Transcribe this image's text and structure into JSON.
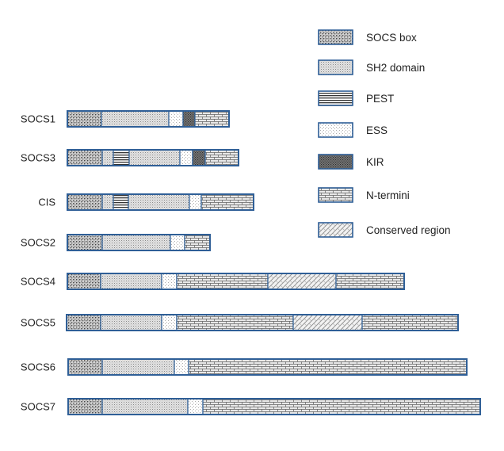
{
  "legend": [
    {
      "key": "socs",
      "label": "SOCS box",
      "pattern": "socs-box-pattern"
    },
    {
      "key": "sh2",
      "label": "SH2 domain",
      "pattern": "sh2-domain-pattern"
    },
    {
      "key": "pest",
      "label": "PEST",
      "pattern": "pest-pattern"
    },
    {
      "key": "ess",
      "label": "ESS",
      "pattern": "ess-pattern"
    },
    {
      "key": "kir",
      "label": "KIR",
      "pattern": "kir-pattern"
    },
    {
      "key": "nterm",
      "label": "N-termini",
      "pattern": "n-termini-pattern"
    },
    {
      "key": "cons",
      "label": "Conserved region",
      "pattern": "conserved-region-pattern"
    }
  ],
  "proteins": [
    {
      "name": "SOCS1",
      "domains": [
        "socs",
        "sh2",
        "ess",
        "kir",
        "nterm"
      ]
    },
    {
      "name": "SOCS3",
      "domains": [
        "socs",
        "sh2",
        "pest",
        "sh2",
        "ess",
        "kir",
        "nterm"
      ]
    },
    {
      "name": "CIS",
      "domains": [
        "socs",
        "sh2",
        "pest",
        "sh2",
        "ess",
        "nterm"
      ]
    },
    {
      "name": "SOCS2",
      "domains": [
        "socs",
        "sh2",
        "ess",
        "nterm"
      ]
    },
    {
      "name": "SOCS4",
      "domains": [
        "socs",
        "sh2",
        "ess",
        "nterm",
        "cons",
        "nterm"
      ]
    },
    {
      "name": "SOCS5",
      "domains": [
        "socs",
        "sh2",
        "ess",
        "nterm",
        "cons",
        "nterm"
      ]
    },
    {
      "name": "SOCS6",
      "domains": [
        "socs",
        "sh2",
        "ess",
        "nterm"
      ]
    },
    {
      "name": "SOCS7",
      "domains": [
        "socs",
        "sh2",
        "ess",
        "nterm"
      ]
    }
  ],
  "colors": {
    "outline": "#2f5f97",
    "pattern": "#4a4a4a",
    "fill": "#e6e6e6"
  }
}
